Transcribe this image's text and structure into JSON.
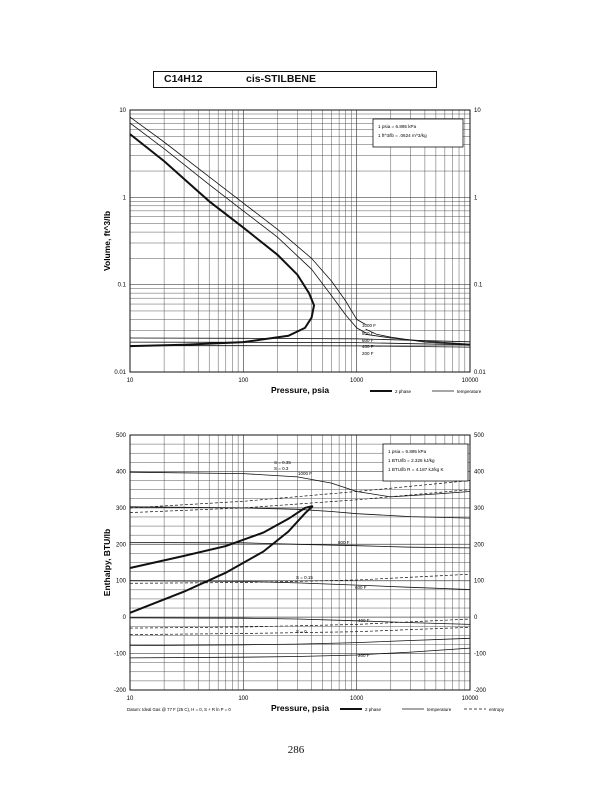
{
  "header": {
    "formula": "C14H12",
    "compound": "cis-STILBENE"
  },
  "page_number": "286",
  "chart_data": [
    {
      "type": "line",
      "ylabel": "Volume, ft^3/lb",
      "xlabel": "Pressure,  psia",
      "x_scale": "log",
      "y_scale": "log",
      "xlim": [
        10,
        10000
      ],
      "ylim": [
        0.01,
        10
      ],
      "x_ticks": [
        "10",
        "100",
        "1000",
        "10000"
      ],
      "y_ticks_left": [
        "10",
        "1",
        "0.1",
        "0.01"
      ],
      "y_ticks_right": [
        "10",
        "1",
        "0.1",
        "0.01"
      ],
      "grid": true,
      "info_box": [
        "1 psia = 6.895 kPa",
        "1 ft^3/lb = .0624 m^3/kg"
      ],
      "legend": [
        {
          "label": "2 phase",
          "style": "thick"
        },
        {
          "label": "temperature",
          "style": "thin"
        }
      ],
      "isotherm_labels": [
        "1000 F",
        "800 F",
        "600 F",
        "400 F",
        "200 F"
      ],
      "series": [
        {
          "role": "saturation",
          "style": "thick",
          "points": [
            [
              10,
              5.3
            ],
            [
              20,
              2.6
            ],
            [
              50,
              0.9
            ],
            [
              100,
              0.45
            ],
            [
              200,
              0.22
            ],
            [
              300,
              0.13
            ],
            [
              380,
              0.08
            ],
            [
              420,
              0.058
            ],
            [
              400,
              0.042
            ],
            [
              350,
              0.032
            ],
            [
              250,
              0.026
            ],
            [
              100,
              0.022
            ],
            [
              30,
              0.0205
            ],
            [
              10,
              0.0198
            ]
          ]
        },
        {
          "role": "isotherm",
          "style": "thin",
          "points": [
            [
              10,
              8.3
            ],
            [
              20,
              4.3
            ],
            [
              50,
              1.72
            ],
            [
              100,
              0.86
            ],
            [
              200,
              0.43
            ],
            [
              400,
              0.2
            ],
            [
              600,
              0.11
            ],
            [
              800,
              0.065
            ],
            [
              1000,
              0.04
            ],
            [
              1200,
              0.035
            ]
          ]
        },
        {
          "role": "isotherm",
          "style": "thin",
          "points": [
            [
              10,
              7.1
            ],
            [
              20,
              3.6
            ],
            [
              50,
              1.4
            ],
            [
              100,
              0.7
            ],
            [
              200,
              0.35
            ],
            [
              400,
              0.15
            ],
            [
              600,
              0.075
            ],
            [
              800,
              0.045
            ],
            [
              1000,
              0.032
            ],
            [
              1200,
              0.028
            ]
          ]
        },
        {
          "role": "isotherm",
          "style": "thin",
          "points": [
            [
              1200,
              0.031
            ],
            [
              1500,
              0.027
            ],
            [
              2000,
              0.025
            ],
            [
              4000,
              0.022
            ],
            [
              10000,
              0.0205
            ]
          ]
        },
        {
          "role": "isotherm",
          "style": "thin",
          "points": [
            [
              1200,
              0.027
            ],
            [
              2000,
              0.0245
            ],
            [
              4000,
              0.0225
            ],
            [
              10000,
              0.0208
            ]
          ]
        },
        {
          "role": "isotherm",
          "style": "thin",
          "points": [
            [
              10,
              0.0245
            ],
            [
              100,
              0.0243
            ],
            [
              1000,
              0.024
            ],
            [
              10000,
              0.0222
            ]
          ]
        },
        {
          "role": "isotherm",
          "style": "thin",
          "points": [
            [
              10,
              0.022
            ],
            [
              100,
              0.0219
            ],
            [
              1000,
              0.0217
            ],
            [
              10000,
              0.0205
            ]
          ]
        },
        {
          "role": "isotherm",
          "style": "thin",
          "points": [
            [
              10,
              0.02
            ],
            [
              100,
              0.02
            ],
            [
              1000,
              0.0199
            ],
            [
              10000,
              0.0193
            ]
          ]
        }
      ]
    },
    {
      "type": "line",
      "ylabel": "Enthalpy, BTU/lb",
      "xlabel": "Pressure,  psia",
      "x_scale": "log",
      "y_scale": "linear",
      "xlim": [
        10,
        10000
      ],
      "ylim": [
        -200,
        500
      ],
      "x_ticks": [
        "10",
        "100",
        "1000",
        "10000"
      ],
      "y_ticks_left": [
        "500",
        "400",
        "300",
        "200",
        "100",
        "0",
        "-100",
        "-200"
      ],
      "y_ticks_right": [
        "500",
        "400",
        "300",
        "200",
        "100",
        "0",
        "-100",
        "-200"
      ],
      "grid": true,
      "info_box": [
        "1 psia = 6.895 kPa",
        "1 BTU/lb = 2.326 kJ/kg",
        "1 BTU/lb R = 4.187 kJ/kg K"
      ],
      "footnote": "Datum: Ideal Gas @ 77 F (25 C),  H = 0,  S + R ln P = 0",
      "legend": [
        {
          "label": "2 phase",
          "style": "thick"
        },
        {
          "label": "temperature",
          "style": "thin"
        },
        {
          "label": "entropy",
          "style": "dashed"
        }
      ],
      "isotherm_labels": [
        "1000 F",
        "800 F",
        "600 F",
        "400 F",
        "200 F"
      ],
      "entropy_labels": [
        "S = 0.35",
        "S = 0.3",
        "S = 0.15",
        "S = 0"
      ],
      "series": [
        {
          "role": "saturation-vapor",
          "style": "thick",
          "points": [
            [
              10,
              135
            ],
            [
              30,
              168
            ],
            [
              70,
              195
            ],
            [
              150,
              232
            ],
            [
              250,
              270
            ],
            [
              350,
              300
            ],
            [
              410,
              305
            ]
          ]
        },
        {
          "role": "saturation-liquid",
          "style": "thick",
          "points": [
            [
              10,
              12
            ],
            [
              30,
              70
            ],
            [
              70,
              122
            ],
            [
              150,
              180
            ],
            [
              250,
              235
            ],
            [
              350,
              285
            ],
            [
              410,
              305
            ]
          ]
        },
        {
          "role": "isotherm",
          "style": "thin",
          "points": [
            [
              10,
              398
            ],
            [
              100,
              394
            ],
            [
              300,
              385
            ],
            [
              600,
              368
            ],
            [
              1000,
              345
            ],
            [
              2000,
              330
            ],
            [
              5000,
              338
            ],
            [
              10000,
              345
            ]
          ]
        },
        {
          "role": "isotherm",
          "style": "thin",
          "points": [
            [
              10,
              303
            ],
            [
              100,
              300
            ],
            [
              300,
              296
            ],
            [
              600,
              290
            ],
            [
              1000,
              284
            ],
            [
              3000,
              276
            ],
            [
              10000,
              272
            ]
          ]
        },
        {
          "role": "isotherm",
          "style": "thin",
          "points": [
            [
              10,
              205
            ],
            [
              100,
              204
            ],
            [
              300,
              200
            ],
            [
              1000,
              196
            ],
            [
              3000,
              192
            ],
            [
              10000,
              190
            ]
          ]
        },
        {
          "role": "isotherm",
          "style": "thin",
          "points": [
            [
              10,
              100
            ],
            [
              100,
              98
            ],
            [
              300,
              94
            ],
            [
              1000,
              88
            ],
            [
              3000,
              82
            ],
            [
              10000,
              76
            ]
          ]
        },
        {
          "role": "isotherm",
          "style": "thin",
          "points": [
            [
              10,
              -2
            ],
            [
              100,
              -3
            ],
            [
              300,
              -5
            ],
            [
              1000,
              -10
            ],
            [
              3000,
              -15
            ],
            [
              10000,
              -20
            ]
          ]
        },
        {
          "role": "isotherm",
          "style": "thin",
          "points": [
            [
              10,
              -78
            ],
            [
              100,
              -76
            ],
            [
              300,
              -74
            ],
            [
              1000,
              -70
            ],
            [
              3000,
              -64
            ],
            [
              10000,
              -58
            ]
          ]
        },
        {
          "role": "isotherm",
          "style": "thin",
          "points": [
            [
              10,
              -112
            ],
            [
              100,
              -110
            ],
            [
              300,
              -108
            ],
            [
              1000,
              -104
            ],
            [
              3000,
              -96
            ],
            [
              10000,
              -85
            ]
          ]
        },
        {
          "role": "entropy",
          "style": "dashed",
          "points": [
            [
              10,
              300
            ],
            [
              100,
              318
            ],
            [
              1000,
              345
            ],
            [
              10000,
              375
            ]
          ]
        },
        {
          "role": "entropy",
          "style": "dashed",
          "points": [
            [
              10,
              287
            ],
            [
              100,
              300
            ],
            [
              1000,
              322
            ],
            [
              10000,
              350
            ]
          ]
        },
        {
          "role": "entropy",
          "style": "dashed",
          "points": [
            [
              10,
              93
            ],
            [
              100,
              95
            ],
            [
              1000,
              102
            ],
            [
              10000,
              118
            ]
          ]
        },
        {
          "role": "entropy",
          "style": "dashed",
          "points": [
            [
              10,
              -30
            ],
            [
              100,
              -27
            ],
            [
              1000,
              -20
            ],
            [
              10000,
              -5
            ]
          ]
        },
        {
          "role": "entropy",
          "style": "dashed",
          "points": [
            [
              10,
              -48
            ],
            [
              100,
              -45
            ],
            [
              1000,
              -40
            ],
            [
              10000,
              -28
            ]
          ]
        }
      ]
    }
  ]
}
